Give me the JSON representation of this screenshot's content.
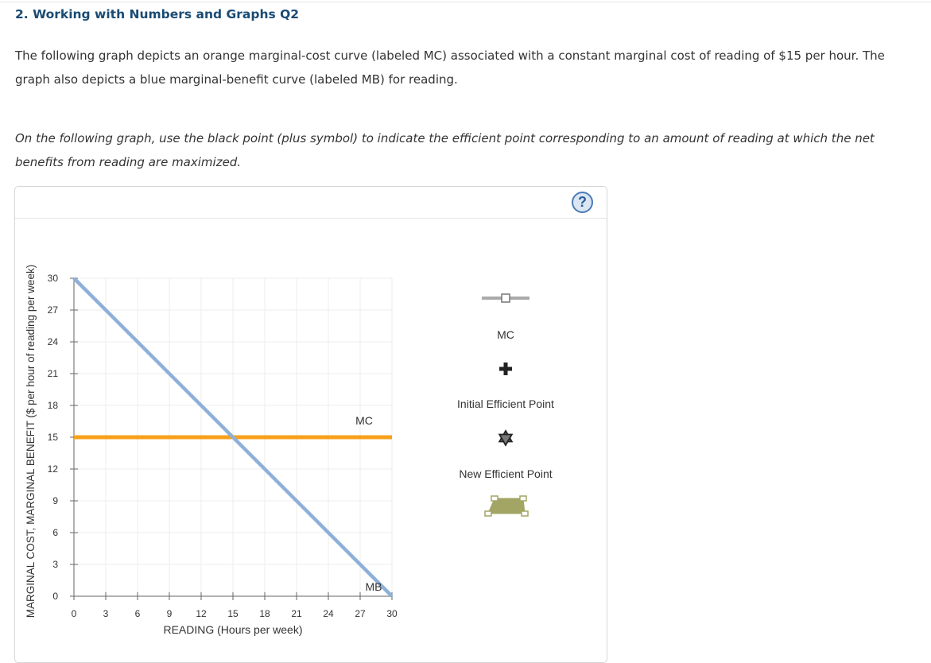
{
  "question": {
    "title": "2. Working with Numbers and Graphs Q2",
    "intro": "The following graph depicts an orange marginal-cost curve (labeled MC) associated with a constant marginal cost of reading of $15 per hour. The graph also depicts a blue marginal-benefit curve (labeled MB) for reading.",
    "instruction": "On the following graph, use the black point (plus symbol) to indicate the efficient point corresponding to an amount of reading at which the net benefits from reading are maximized."
  },
  "help_button": {
    "label": "?"
  },
  "palette": {
    "items": [
      {
        "label": "MC",
        "icon": "line-with-square-handle-icon",
        "color": "#aaaaaa"
      },
      {
        "label": "Initial Efficient Point",
        "icon": "plus-icon",
        "color": "#222222"
      },
      {
        "label": "New Efficient Point",
        "icon": "star-icon",
        "color": "#222222"
      },
      {
        "label": "",
        "icon": "polygon-area-icon",
        "color": "#a3a564"
      }
    ]
  },
  "chart_data": {
    "type": "line",
    "xlabel": "READING (Hours per week)",
    "ylabel": "MARGINAL COST, MARGINAL BENEFIT ($ per hour of reading per week)",
    "xlim": [
      0,
      30
    ],
    "ylim": [
      0,
      30
    ],
    "x_ticks": [
      "0",
      "3",
      "6",
      "9",
      "12",
      "15",
      "18",
      "21",
      "24",
      "27",
      "30"
    ],
    "y_ticks": [
      "0",
      "3",
      "6",
      "9",
      "12",
      "15",
      "18",
      "21",
      "24",
      "27",
      "30"
    ],
    "grid": true,
    "series": [
      {
        "name": "MC",
        "color": "#f7a01c",
        "x": [
          0,
          30
        ],
        "y": [
          15,
          15
        ]
      },
      {
        "name": "MB",
        "color": "#8eb0d8",
        "x": [
          0,
          30
        ],
        "y": [
          30,
          0
        ]
      }
    ]
  }
}
